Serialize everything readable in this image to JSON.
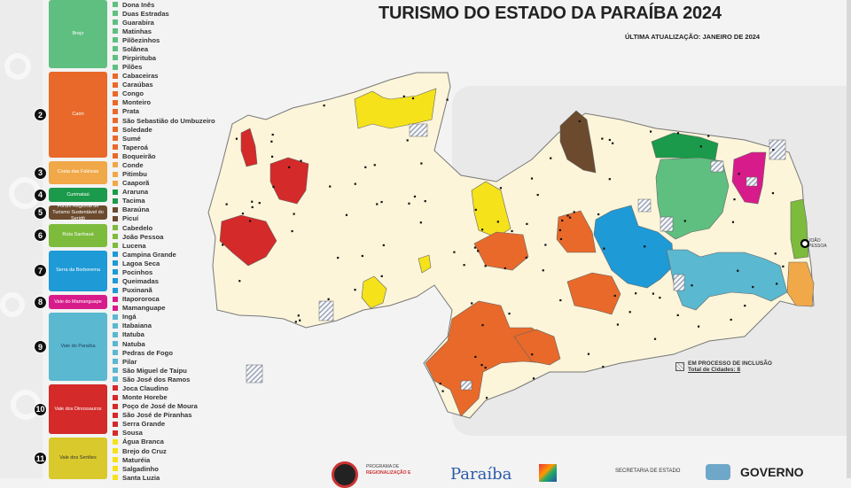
{
  "header": {
    "title": "TURISMO DO ESTADO DA PARAÍBA 2024",
    "updated": "ÚLTIMA ATUALIZAÇÃO: JANEIRO DE 2024"
  },
  "legend": {
    "regions": [
      {
        "number": "",
        "name": "Brejo",
        "color": "#5fbf80",
        "cities": [
          "Dona Inês",
          "Duas Estradas",
          "Guarabira",
          "Matinhas",
          "Pilõezinhos",
          "Solânea",
          "Pirpirituba",
          "Pilões"
        ]
      },
      {
        "number": "2",
        "name": "Cariri",
        "color": "#e8692a",
        "cities": [
          "Cabaceiras",
          "Caraúbas",
          "Congo",
          "Monteiro",
          "Prata",
          "São Sebastião do Umbuzeiro",
          "Soledade",
          "Sumé",
          "Taperoá",
          "Boqueirão"
        ]
      },
      {
        "number": "3",
        "name": "Costa das Falésias",
        "color": "#f0a848",
        "cities": [
          "Conde",
          "Pitimbu",
          "Caaporã"
        ]
      },
      {
        "number": "4",
        "name": "Curimataú",
        "color": "#1a9a4a",
        "cities": [
          "Araruna",
          "Tacima"
        ]
      },
      {
        "number": "5",
        "name": "Fórum Regional de Turismo Sustentável do Seridó",
        "color": "#6b4a2e",
        "cities": [
          "Baraúna",
          "Picuí"
        ]
      },
      {
        "number": "6",
        "name": "Rota Sanhauá",
        "color": "#7dbb3c",
        "cities": [
          "Cabedelo",
          "João Pessoa",
          "Lucena"
        ]
      },
      {
        "number": "7",
        "name": "Serra da Borborema",
        "color": "#1e9ad6",
        "cities": [
          "Campina Grande",
          "Lagoa Seca",
          "Pocinhos",
          "Queimadas",
          "Puxinanã"
        ]
      },
      {
        "number": "8",
        "name": "Vale do Mamanguape",
        "color": "#d81b8a",
        "cities": [
          "Itapororoca",
          "Mamanguape"
        ]
      },
      {
        "number": "9",
        "name": "Vale do Paraíba",
        "color": "#5ab8d0",
        "text_color": "#1c3b5a",
        "cities": [
          "Ingá",
          "Itabaiana",
          "Itatuba",
          "Natuba",
          "Pedras de Fogo",
          "Pilar",
          "São Miguel de Taipu",
          "São José dos Ramos"
        ]
      },
      {
        "number": "10",
        "name": "Vale dos Dinossauros",
        "color": "#d42a2a",
        "cities": [
          "Joca Claudino",
          "Monte Horebe",
          "Poço de José de Moura",
          "São José de Piranhas",
          "Serra Grande",
          "Sousa"
        ]
      },
      {
        "number": "11",
        "name": "Vale dos Sertões",
        "color": "#d9c92c",
        "square_color": "#f5e21a",
        "text_color": "#333333",
        "cities": [
          "Água Branca",
          "Brejo do Cruz",
          "Maturéia",
          "Salgadinho",
          "Santa Luzia"
        ]
      }
    ]
  },
  "map": {
    "capital_label": "JOÃO PESSOA",
    "base_color": "#fcf5da",
    "inclusion": {
      "label": "EM PROCESSO DE INCLUSÃO",
      "total": "Total de Cidades: 8"
    }
  },
  "footer": {
    "program_line1": "PROGRAMA DE",
    "program_line2": "REGIONALIZAÇÃO E",
    "paraiba_logo": "Paraíba",
    "secretaria": "SECRETARIA DE ESTADO",
    "governo": "GOVERNO"
  }
}
